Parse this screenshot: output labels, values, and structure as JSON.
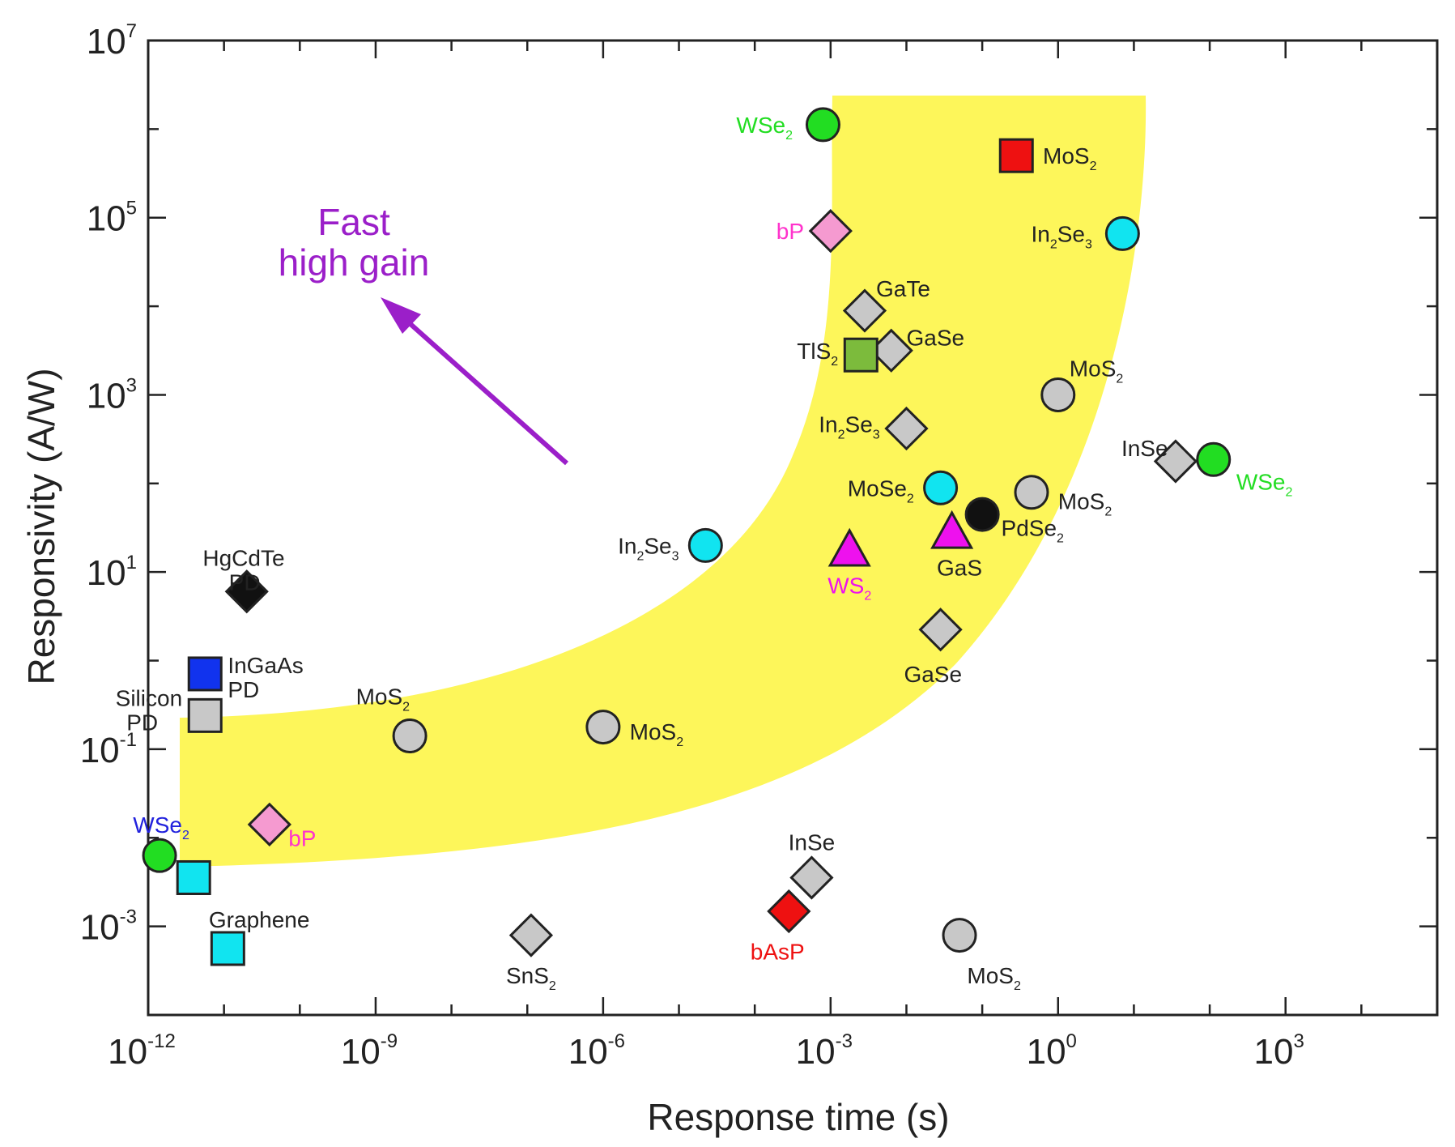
{
  "chart_data": {
    "type": "scatter",
    "title": "",
    "xlabel": "Response time (s)",
    "ylabel": "Responsivity (A/W)",
    "xscale": "log",
    "yscale": "log",
    "xlim_exp": [
      -12,
      5
    ],
    "ylim_exp": [
      -4,
      7
    ],
    "x_ticks": [
      {
        "base": "10",
        "exp": "-12"
      },
      {
        "base": "10",
        "exp": "-9"
      },
      {
        "base": "10",
        "exp": "-6"
      },
      {
        "base": "10",
        "exp": "-3"
      },
      {
        "base": "10",
        "exp": "0"
      },
      {
        "base": "10",
        "exp": "3"
      }
    ],
    "y_ticks": [
      {
        "base": "10",
        "exp": "-3"
      },
      {
        "base": "10",
        "exp": "-1"
      },
      {
        "base": "10",
        "exp": "1"
      },
      {
        "base": "10",
        "exp": "3"
      },
      {
        "base": "10",
        "exp": "5"
      },
      {
        "base": "10",
        "exp": "7"
      }
    ],
    "annotation": {
      "lines": [
        "Fast",
        "high gain"
      ],
      "color": "#9b1fc9"
    },
    "band_color": "#fdf65a",
    "points": [
      {
        "x": -3.1,
        "y": 6.05,
        "shape": "circle",
        "fill": "#22dd22",
        "label": "WSe",
        "sub": "2",
        "label_color": "#22dd22",
        "anchor": "end",
        "dx": -0.4,
        "dy": 0.0
      },
      {
        "x": -0.55,
        "y": 5.7,
        "shape": "square",
        "fill": "#ee1111",
        "label": "MoS",
        "sub": "2",
        "label_color": "#222222",
        "anchor": "start",
        "dx": 0.35,
        "dy": 0.0
      },
      {
        "x": -3.0,
        "y": 4.85,
        "shape": "diamond",
        "fill": "#f59ad0",
        "label": "bP",
        "sub": "",
        "label_color": "#ff33cc",
        "anchor": "end",
        "dx": -0.35,
        "dy": 0.0
      },
      {
        "x": 0.85,
        "y": 4.82,
        "shape": "circle",
        "fill": "#11e4f0",
        "label": "In",
        "sub": "2",
        "label_color": "#222222",
        "anchor": "end",
        "dx": -0.4,
        "dy": 0.0,
        "label2": "Se",
        "sub2": "3"
      },
      {
        "x": -2.55,
        "y": 3.95,
        "shape": "diamond",
        "fill": "#c8c8c8",
        "label": "GaTe",
        "sub": "",
        "label_color": "#222222",
        "anchor": "start",
        "dx": 0.15,
        "dy": 0.25
      },
      {
        "x": -2.2,
        "y": 3.5,
        "shape": "diamond",
        "fill": "#c8c8c8",
        "label": "GaSe",
        "sub": "",
        "label_color": "#222222",
        "anchor": "start",
        "dx": 0.2,
        "dy": 0.15
      },
      {
        "x": -2.6,
        "y": 3.45,
        "shape": "square",
        "fill": "#7cbb3c",
        "label": "TlS",
        "sub": "2",
        "label_color": "#222222",
        "anchor": "end",
        "dx": -0.3,
        "dy": 0.05
      },
      {
        "x": 0.0,
        "y": 3.0,
        "shape": "circle",
        "fill": "#c8c8c8",
        "label": "MoS",
        "sub": "2",
        "label_color": "#222222",
        "anchor": "start",
        "dx": 0.15,
        "dy": 0.3
      },
      {
        "x": -2.0,
        "y": 2.62,
        "shape": "diamond",
        "fill": "#c8c8c8",
        "label": "In",
        "sub": "2",
        "label_color": "#222222",
        "anchor": "end",
        "dx": -0.35,
        "dy": 0.05,
        "label2": "Se",
        "sub2": "3"
      },
      {
        "x": 1.55,
        "y": 2.25,
        "shape": "diamond",
        "fill": "#c8c8c8",
        "label": "InSe",
        "sub": "",
        "label_color": "#222222",
        "anchor": "end",
        "dx": -0.1,
        "dy": 0.15
      },
      {
        "x": 2.05,
        "y": 2.27,
        "shape": "circle",
        "fill": "#22dd22",
        "label": "WSe",
        "sub": "2",
        "label_color": "#22dd22",
        "anchor": "start",
        "dx": 0.3,
        "dy": -0.25
      },
      {
        "x": -1.55,
        "y": 1.95,
        "shape": "circle",
        "fill": "#11e4f0",
        "label": "MoSe",
        "sub": "2",
        "label_color": "#222222",
        "anchor": "end",
        "dx": -0.35,
        "dy": 0.0
      },
      {
        "x": -0.35,
        "y": 1.9,
        "shape": "circle",
        "fill": "#c8c8c8",
        "label": "MoS",
        "sub": "2",
        "label_color": "#222222",
        "anchor": "start",
        "dx": 0.35,
        "dy": -0.1
      },
      {
        "x": -1.0,
        "y": 1.65,
        "shape": "circle",
        "fill": "#111111",
        "label": "PdSe",
        "sub": "2",
        "label_color": "#222222",
        "anchor": "start",
        "dx": 0.25,
        "dy": -0.15
      },
      {
        "x": -1.4,
        "y": 1.45,
        "shape": "triangle",
        "fill": "#ee11ee",
        "label": "GaS",
        "sub": "",
        "label_color": "#222222",
        "anchor": "middle",
        "dx": 0.1,
        "dy": -0.4
      },
      {
        "x": -4.65,
        "y": 1.3,
        "shape": "circle",
        "fill": "#11e4f0",
        "label": "In",
        "sub": "2",
        "label_color": "#222222",
        "anchor": "end",
        "dx": -0.35,
        "dy": 0.0,
        "label2": "Se",
        "sub2": "3"
      },
      {
        "x": -2.75,
        "y": 1.25,
        "shape": "triangle",
        "fill": "#ee11ee",
        "label": "WS",
        "sub": "2",
        "label_color": "#ee11ee",
        "anchor": "middle",
        "dx": 0.0,
        "dy": -0.4
      },
      {
        "x": -10.7,
        "y": 0.78,
        "shape": "diamond",
        "fill": "#111111",
        "label": "HgCdTe",
        "sub": "",
        "label_color": "#222222",
        "anchor": "end",
        "dx": 0.5,
        "dy": 0.38,
        "label2_line": "PD"
      },
      {
        "x": -1.55,
        "y": 0.35,
        "shape": "diamond",
        "fill": "#c8c8c8",
        "label": "GaSe",
        "sub": "",
        "label_color": "#222222",
        "anchor": "middle",
        "dx": -0.1,
        "dy": -0.5
      },
      {
        "x": -11.25,
        "y": -0.15,
        "shape": "square",
        "fill": "#1133ee",
        "label": "InGaAs",
        "sub": "",
        "label_color": "#222222",
        "anchor": "start",
        "dx": 0.3,
        "dy": 0.1,
        "label2_line": "PD"
      },
      {
        "x": -11.25,
        "y": -0.62,
        "shape": "square",
        "fill": "#c8c8c8",
        "label": "Silicon",
        "sub": "",
        "label_color": "#222222",
        "anchor": "end",
        "dx": -0.3,
        "dy": 0.2,
        "label2_line": "PD"
      },
      {
        "x": -8.55,
        "y": -0.85,
        "shape": "circle",
        "fill": "#c8c8c8",
        "label": "MoS",
        "sub": "2",
        "label_color": "#222222",
        "anchor": "end",
        "dx": 0.0,
        "dy": 0.45
      },
      {
        "x": -6.0,
        "y": -0.75,
        "shape": "circle",
        "fill": "#c8c8c8",
        "label": "MoS",
        "sub": "2",
        "label_color": "#222222",
        "anchor": "start",
        "dx": 0.35,
        "dy": -0.05
      },
      {
        "x": -10.4,
        "y": -1.85,
        "shape": "diamond",
        "fill": "#f59ad0",
        "label": "bP",
        "sub": "",
        "label_color": "#ff33cc",
        "anchor": "start",
        "dx": 0.25,
        "dy": -0.15
      },
      {
        "x": -11.85,
        "y": -2.2,
        "shape": "circle",
        "fill": "#22dd22",
        "label": "WSe",
        "sub": "2",
        "label_color": "#2222dd",
        "anchor": "start",
        "dx": -0.35,
        "dy": 0.35
      },
      {
        "x": -11.4,
        "y": -2.45,
        "shape": "square",
        "fill": "#11e4f0",
        "label": "",
        "sub": "",
        "label_color": "#222222",
        "anchor": "start",
        "dx": 0,
        "dy": 0
      },
      {
        "x": -3.25,
        "y": -2.45,
        "shape": "diamond",
        "fill": "#c8c8c8",
        "label": "InSe",
        "sub": "",
        "label_color": "#222222",
        "anchor": "middle",
        "dx": 0.0,
        "dy": 0.4
      },
      {
        "x": -3.55,
        "y": -2.83,
        "shape": "diamond",
        "fill": "#ee1111",
        "label": "bAsP",
        "sub": "",
        "label_color": "#ee1111",
        "anchor": "middle",
        "dx": -0.15,
        "dy": -0.45
      },
      {
        "x": -10.95,
        "y": -3.25,
        "shape": "square",
        "fill": "#11e4f0",
        "label": "Graphene",
        "sub": "",
        "label_color": "#222222",
        "anchor": "start",
        "dx": -0.25,
        "dy": 0.33
      },
      {
        "x": -6.95,
        "y": -3.1,
        "shape": "diamond",
        "fill": "#c8c8c8",
        "label": "SnS",
        "sub": "2",
        "label_color": "#222222",
        "anchor": "middle",
        "dx": 0.0,
        "dy": -0.45
      },
      {
        "x": -1.3,
        "y": -3.1,
        "shape": "circle",
        "fill": "#c8c8c8",
        "label": "MoS",
        "sub": "2",
        "label_color": "#222222",
        "anchor": "start",
        "dx": 0.1,
        "dy": -0.45
      }
    ]
  }
}
